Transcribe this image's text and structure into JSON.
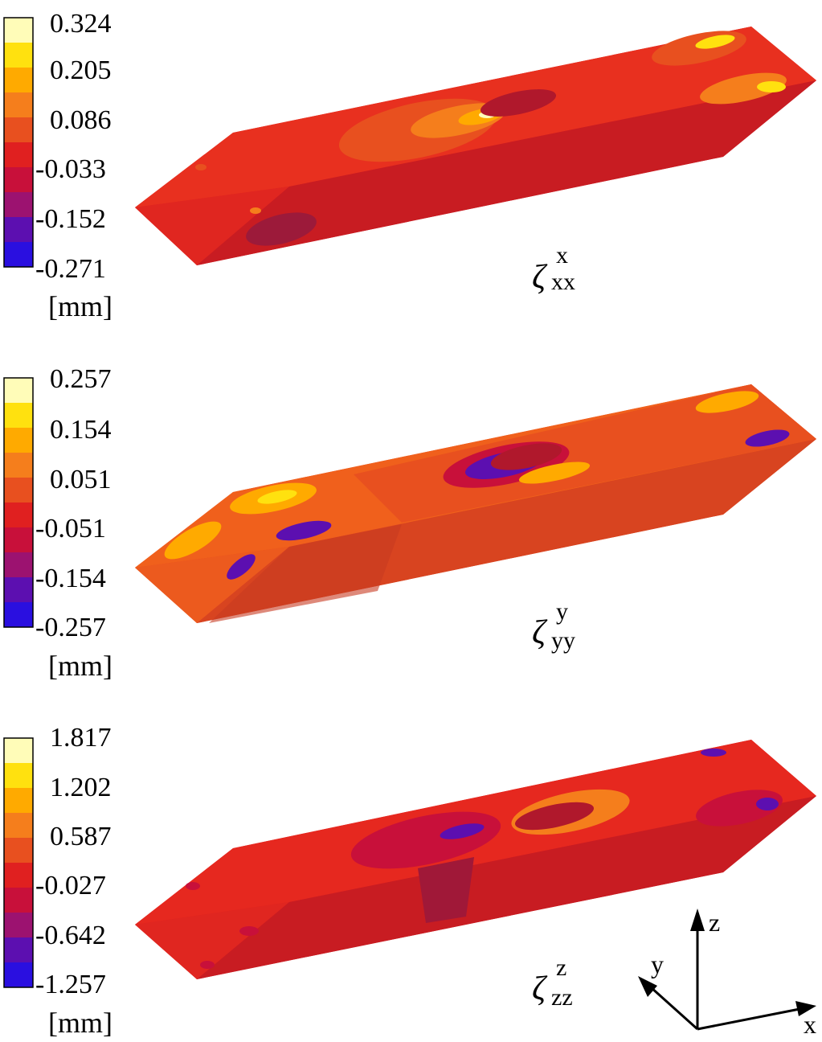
{
  "panels": [
    {
      "id": "xx",
      "colorbar": {
        "ticks": [
          "0.324",
          "0.205",
          "0.086",
          "-0.033",
          "-0.152",
          "-0.271"
        ],
        "unit": "[mm]"
      },
      "label": {
        "symbol": "ζ",
        "superscript": "x",
        "subscript": "xx"
      }
    },
    {
      "id": "yy",
      "colorbar": {
        "ticks": [
          "0.257",
          "0.154",
          "0.051",
          "-0.051",
          "-0.154",
          "-0.257"
        ],
        "unit": "[mm]"
      },
      "label": {
        "symbol": "ζ",
        "superscript": "y",
        "subscript": "yy"
      }
    },
    {
      "id": "zz",
      "colorbar": {
        "ticks": [
          "1.817",
          "1.202",
          "0.587",
          "-0.027",
          "-0.642",
          "-1.257"
        ],
        "unit": "[mm]"
      },
      "label": {
        "symbol": "ζ",
        "superscript": "z",
        "subscript": "zz"
      }
    }
  ],
  "colormap": [
    "#fffcb8",
    "#ffe10f",
    "#ffaa00",
    "#f57e1c",
    "#e8501f",
    "#e02020",
    "#c8103a",
    "#9c1270",
    "#5c0fb0",
    "#2a0fe0"
  ],
  "axes_triad": {
    "z": "z",
    "y": "y",
    "x": "x"
  }
}
